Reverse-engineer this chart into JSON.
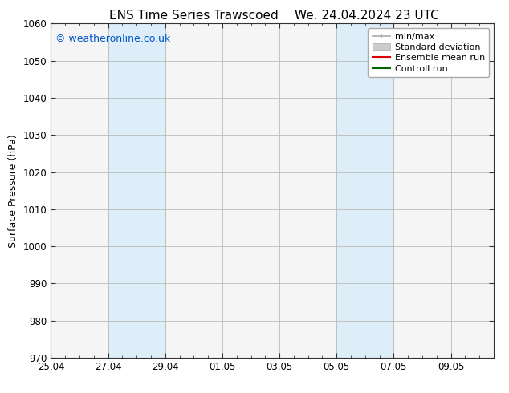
{
  "title_left": "ENS Time Series Trawscoed",
  "title_right": "We. 24.04.2024 23 UTC",
  "ylabel": "Surface Pressure (hPa)",
  "ylim": [
    970,
    1060
  ],
  "yticks": [
    970,
    980,
    990,
    1000,
    1010,
    1020,
    1030,
    1040,
    1050,
    1060
  ],
  "xtick_labels": [
    "25.04",
    "27.04",
    "29.04",
    "01.05",
    "03.05",
    "05.05",
    "07.05",
    "09.05"
  ],
  "xtick_positions": [
    0,
    2,
    4,
    6,
    8,
    10,
    12,
    14
  ],
  "x_min": 0,
  "x_max": 15.5,
  "shaded_regions": [
    {
      "x_start": 2,
      "x_end": 4,
      "color": "#ddeef8"
    },
    {
      "x_start": 10,
      "x_end": 12,
      "color": "#ddeef8"
    }
  ],
  "watermark": "© weatheronline.co.uk",
  "watermark_color": "#0055cc",
  "legend_entries": [
    {
      "label": "min/max"
    },
    {
      "label": "Standard deviation"
    },
    {
      "label": "Ensemble mean run"
    },
    {
      "label": "Controll run"
    }
  ],
  "legend_colors": [
    "#aaaaaa",
    "#cccccc",
    "#dd0000",
    "#006600"
  ],
  "background_color": "#ffffff",
  "plot_bg_color": "#f5f5f5",
  "tick_color": "#333333",
  "spine_color": "#333333",
  "title_fontsize": 11,
  "axis_label_fontsize": 9,
  "tick_fontsize": 8.5,
  "legend_fontsize": 8,
  "watermark_fontsize": 9
}
